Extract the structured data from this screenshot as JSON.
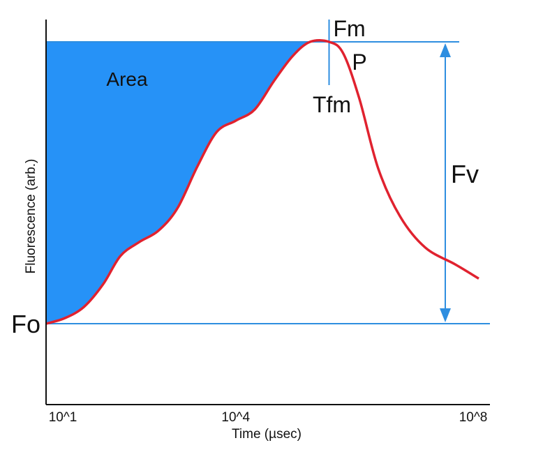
{
  "colors": {
    "area_fill": "#2692f7",
    "curve": "#e0222f",
    "reference_lines": "#2e8ee0",
    "axis": "#111111",
    "text": "#111111"
  },
  "chart_data": {
    "type": "line",
    "title": "",
    "xlabel": "Time (µsec)",
    "ylabel": "Fluorescence (arb.)",
    "x_scale": "log",
    "xlim": [
      10,
      100000000
    ],
    "ylim": [
      -0.26,
      1.05
    ],
    "x_ticks": [
      {
        "value": 10,
        "label": "10^1"
      },
      {
        "value": 10000,
        "label": "10^4"
      },
      {
        "value": 100000000,
        "label": "10^8"
      }
    ],
    "grid": false,
    "legend": "none",
    "series": [
      {
        "x": [
          10,
          20,
          40,
          80,
          150,
          300,
          600,
          1200,
          2500,
          5000,
          10000,
          20000,
          40000,
          80000,
          150000,
          300000,
          500000,
          900000,
          1800000,
          4000000,
          10000000,
          30000000,
          70000000
        ],
        "y": [
          0,
          0.02,
          0.06,
          0.14,
          0.24,
          0.29,
          0.33,
          0.41,
          0.56,
          0.68,
          0.72,
          0.76,
          0.86,
          0.95,
          1.0,
          1.0,
          0.96,
          0.8,
          0.55,
          0.38,
          0.27,
          0.21,
          0.16
        ]
      }
    ],
    "shaded_region": {
      "label": "Area",
      "between": "curve and Fm level, from 10^1 to Tfm"
    },
    "reference_levels": [
      {
        "label": "Fo",
        "y": 0
      },
      {
        "label": "Fm",
        "y": 1.0
      }
    ],
    "annotations": [
      {
        "label": "P",
        "x": 300000,
        "y": 1.0
      },
      {
        "label": "Tfm",
        "x": 300000
      },
      {
        "label": "Fv",
        "from": "Fo",
        "to": "Fm"
      }
    ]
  }
}
